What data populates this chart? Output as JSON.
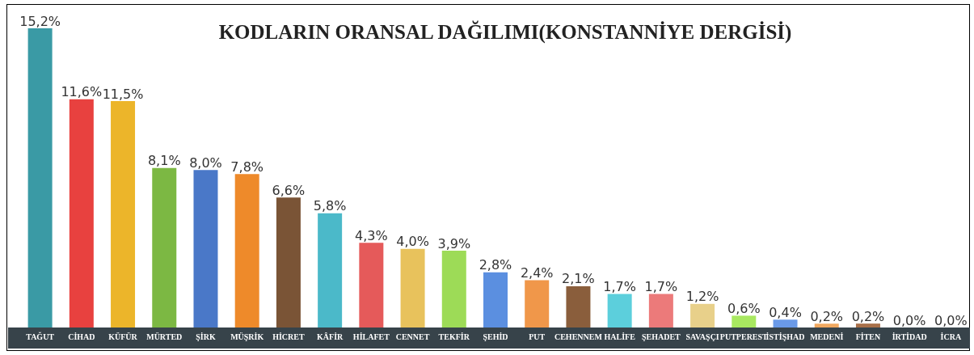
{
  "chart_data": {
    "type": "bar",
    "title": "KODLARIN ORANSAL DAĞILIMI(KONSTANNİYE DERGİSİ)",
    "categories": [
      "TAĞUT",
      "CİHAD",
      "KÜFÜR",
      "MÜRTED",
      "ŞİRK",
      "MÜŞRİK",
      "HİCRET",
      "KÂFİR",
      "HİLAFET",
      "CENNET",
      "TEKFİR",
      "ŞEHİD",
      "PUT",
      "CEHENNEM",
      "HALİFE",
      "ŞEHADET",
      "SAVAŞÇI",
      "PUTPEREST",
      "İSTİŞHAD",
      "MEDENİ",
      "FİTEN",
      "İRTİDAD",
      "İCRA"
    ],
    "values": [
      15.2,
      11.6,
      11.5,
      8.1,
      8.0,
      7.8,
      6.6,
      5.8,
      4.3,
      4.0,
      3.9,
      2.8,
      2.4,
      2.1,
      1.7,
      1.7,
      1.2,
      0.6,
      0.4,
      0.2,
      0.2,
      0.0,
      0.0
    ],
    "value_labels": [
      "15,2%",
      "11,6%",
      "11,5%",
      "8,1%",
      "8,0%",
      "7,8%",
      "6,6%",
      "5,8%",
      "4,3%",
      "4,0%",
      "3,9%",
      "2,8%",
      "2,4%",
      "2,1%",
      "1,7%",
      "1,7%",
      "1,2%",
      "0,6%",
      "0,4%",
      "0,2%",
      "0,2%",
      "0,0%",
      "0,0%"
    ],
    "colors": [
      "#3a9aa5",
      "#e8413f",
      "#ecb52a",
      "#7cb843",
      "#4a78c8",
      "#ee8a2a",
      "#7a5436",
      "#4bb9c9",
      "#e55a5a",
      "#e8c25c",
      "#9ddb57",
      "#5b8fe0",
      "#f0974a",
      "#8a5e3c",
      "#5ccfdc",
      "#ec7a7a",
      "#e8d08a",
      "#a8e860",
      "#6a9ae8",
      "#f0a860",
      "#a8704a",
      "#c08050",
      "#6a9ae8"
    ]
  }
}
